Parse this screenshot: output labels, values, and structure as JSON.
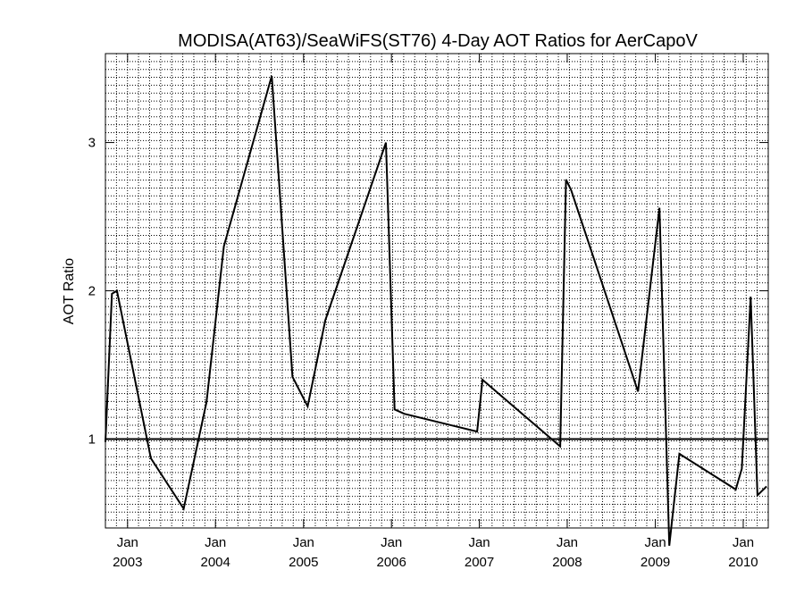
{
  "chart_data": {
    "type": "line",
    "title": "MODISA(AT63)/SeaWiFS(ST76) 4-Day AOT Ratios for AerCapoV",
    "xlabel": "",
    "ylabel": "AOT Ratio",
    "xlim": [
      "2002-10-01",
      "2010-04-15"
    ],
    "ylim": [
      0.4,
      3.6
    ],
    "grid": true,
    "reference_line": 1.0,
    "x_ticks": [
      {
        "date": "2003-01-01",
        "month": "Jan",
        "year": "2003"
      },
      {
        "date": "2004-01-01",
        "month": "Jan",
        "year": "2004"
      },
      {
        "date": "2005-01-01",
        "month": "Jan",
        "year": "2005"
      },
      {
        "date": "2006-01-01",
        "month": "Jan",
        "year": "2006"
      },
      {
        "date": "2007-01-01",
        "month": "Jan",
        "year": "2007"
      },
      {
        "date": "2008-01-01",
        "month": "Jan",
        "year": "2008"
      },
      {
        "date": "2009-01-01",
        "month": "Jan",
        "year": "2009"
      },
      {
        "date": "2010-01-01",
        "month": "Jan",
        "year": "2010"
      }
    ],
    "y_ticks": [
      1,
      2,
      3
    ],
    "x": [
      "2002-10-01",
      "2002-10-28",
      "2002-11-18",
      "2003-04-08",
      "2003-08-22",
      "2003-11-25",
      "2004-02-05",
      "2004-08-22",
      "2004-11-16",
      "2005-01-18",
      "2005-04-01",
      "2005-12-09",
      "2006-01-14",
      "2006-02-23",
      "2006-12-23",
      "2007-01-14",
      "2007-12-03",
      "2007-12-27",
      "2008-01-17",
      "2008-10-21",
      "2009-01-18",
      "2009-02-28",
      "2009-04-11",
      "2009-12-01",
      "2009-12-26",
      "2010-02-01",
      "2010-03-01",
      "2010-04-08"
    ],
    "series": [
      {
        "values": [
          0.98,
          1.98,
          2.0,
          0.87,
          0.53,
          1.25,
          2.3,
          3.45,
          1.42,
          1.22,
          1.8,
          3.0,
          1.2,
          1.17,
          1.05,
          1.4,
          0.95,
          2.75,
          2.68,
          1.32,
          2.56,
          0.28,
          0.9,
          0.66,
          0.8,
          1.96,
          0.62,
          0.68
        ]
      }
    ]
  }
}
